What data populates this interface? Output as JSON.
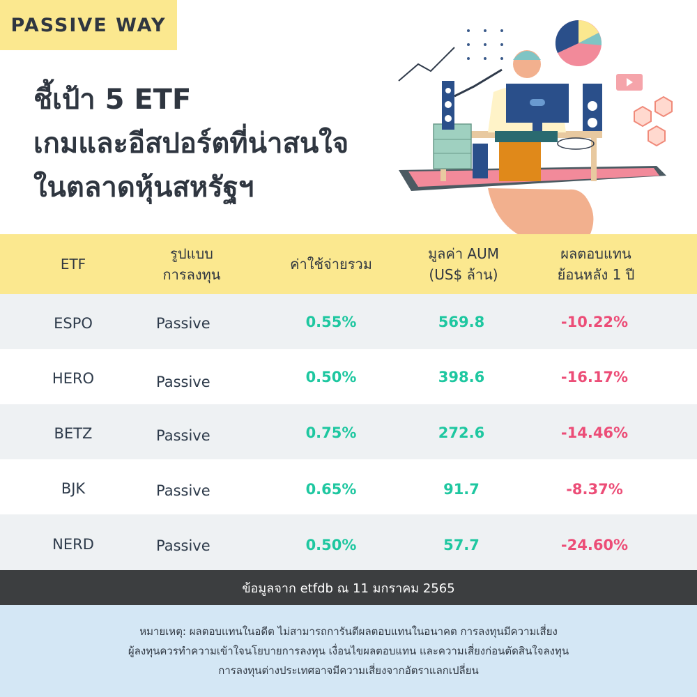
{
  "brand": "PASSIVE WAY",
  "title": {
    "line1": "ชี้เป้า 5 ETF",
    "line2": "เกมและอีสปอร์ตที่น่าสนใจ",
    "line3": "ในตลาดหุ้นสหรัฐฯ"
  },
  "table": {
    "headers": {
      "etf": "ETF",
      "type_line1": "รูปแบบ",
      "type_line2": "การลงทุน",
      "expense": "ค่าใช้จ่ายรวม",
      "aum_line1": "มูลค่า AUM",
      "aum_line2": "(US$ ล้าน)",
      "return_line1": "ผลตอบแทน",
      "return_line2": "ย้อนหลัง 1 ปี"
    },
    "rows": [
      {
        "etf": "ESPO",
        "type": "Passive",
        "expense": "0.55%",
        "aum": "569.8",
        "return": "-10.22%"
      },
      {
        "etf": "HERO",
        "type": "Passive",
        "expense": "0.50%",
        "aum": "398.6",
        "return": "-16.17%"
      },
      {
        "etf": "BETZ",
        "type": "Passive",
        "expense": "0.75%",
        "aum": "272.6",
        "return": "-14.46%"
      },
      {
        "etf": "BJK",
        "type": "Passive",
        "expense": "0.65%",
        "aum": "91.7",
        "return": "-8.37%"
      },
      {
        "etf": "NERD",
        "type": "Passive",
        "expense": "0.50%",
        "aum": "57.7",
        "return": "-24.60%"
      }
    ]
  },
  "source": "ข้อมูลจาก etfdb ณ 11 มกราคม 2565",
  "note": {
    "line1": "หมายเหตุ: ผลตอบแทนในอดีต ไม่สามารถการันตีผลตอบแทนในอนาคต การลงทุนมีความเสี่ยง",
    "line2": "ผู้ลงทุนควรทำความเข้าใจนโยบายการลงทุน เงื่อนไขผลตอบแทน และความเสี่ยงก่อนตัดสินใจลงทุน",
    "line3": "การลงทุนต่างประเทศอาจมีความเสี่ยงจากอัตราแลกเปลี่ยน"
  },
  "colors": {
    "yellow": "#fbe88f",
    "green": "#1ec7a0",
    "red": "#ec4d77",
    "dark": "#3c3e40",
    "light_blue": "#d4e7f5"
  }
}
